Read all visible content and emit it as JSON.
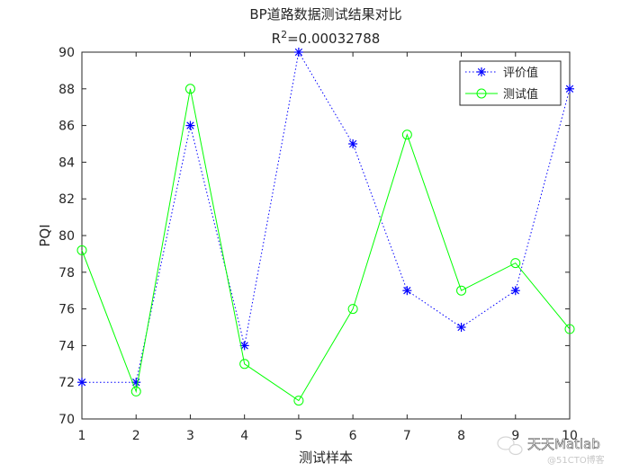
{
  "chart_data": {
    "type": "line",
    "title": "BP道路数据测试结果对比",
    "subtitle_base": "R",
    "subtitle_sup": "2",
    "subtitle_rest": "=0.00032788",
    "xlabel": "测试样本",
    "ylabel": "PQI",
    "x": [
      1,
      2,
      3,
      4,
      5,
      6,
      7,
      8,
      9,
      10
    ],
    "xlim": [
      1,
      10
    ],
    "ylim": [
      70,
      90
    ],
    "xticks": [
      "1",
      "2",
      "3",
      "4",
      "5",
      "6",
      "7",
      "8",
      "9",
      "10"
    ],
    "yticks": [
      "70",
      "72",
      "74",
      "76",
      "78",
      "80",
      "82",
      "84",
      "86",
      "88",
      "90"
    ],
    "grid": false,
    "legend_position": "top-right",
    "series": [
      {
        "name": "评价值",
        "values": [
          72,
          72,
          86,
          74,
          90,
          85,
          77,
          75,
          77,
          88
        ],
        "color": "#0000ff",
        "line_style": "dotted",
        "marker": "star"
      },
      {
        "name": "测试值",
        "values": [
          79.2,
          71.5,
          88.0,
          73.0,
          71.0,
          76.0,
          85.5,
          77.0,
          78.5,
          74.9
        ],
        "color": "#00ff00",
        "line_style": "solid",
        "marker": "circle"
      }
    ]
  },
  "watermark": {
    "brand": "天天Matlab",
    "site": "@51CTO博客",
    "icon": "wechat-icon"
  }
}
